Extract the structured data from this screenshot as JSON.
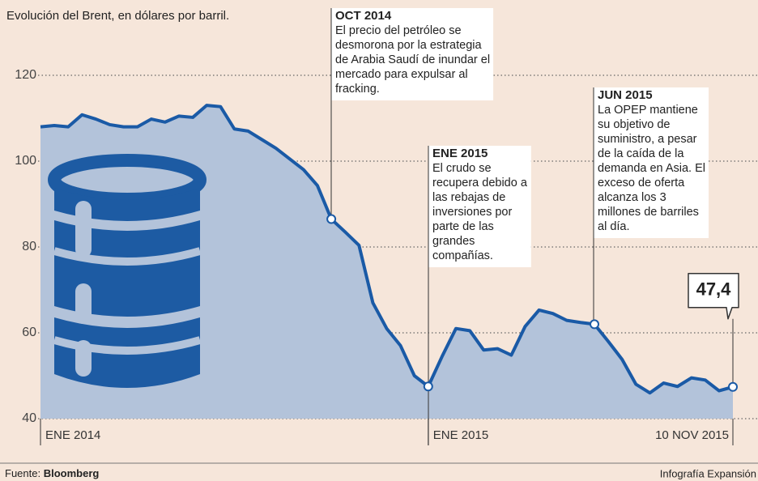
{
  "chart_data": {
    "type": "area",
    "title": "Evolución del Brent, en dólares por barril.",
    "categories": [
      "ENE 2014",
      null,
      null,
      null,
      null,
      null,
      null,
      null,
      null,
      null,
      null,
      null,
      null,
      null,
      null,
      null,
      null,
      null,
      null,
      null,
      null,
      null,
      null,
      null,
      null,
      null,
      null,
      null,
      "ENE 2015",
      null,
      null,
      null,
      null,
      null,
      null,
      null,
      null,
      null,
      null,
      null,
      null,
      null,
      null,
      null,
      null,
      null,
      null,
      null,
      null,
      null,
      "10 NOV 2015"
    ],
    "values": [
      108,
      108.3,
      108,
      110.8,
      109.8,
      108.5,
      108,
      108,
      109.8,
      109.1,
      110.5,
      110.2,
      113,
      112.7,
      107.5,
      107,
      105,
      103,
      100.5,
      98,
      94.3,
      86.5,
      83.5,
      80.4,
      67,
      61,
      57,
      50,
      47.5,
      54.5,
      61,
      60.5,
      56,
      56.3,
      54.8,
      61.5,
      65.3,
      64.5,
      62.9,
      62.4,
      62,
      58,
      53.8,
      48,
      46,
      48.3,
      47.5,
      49.5,
      49,
      46.5,
      47.4
    ],
    "value_labels": [
      null,
      null,
      null,
      null,
      null,
      null,
      null,
      null,
      null,
      null,
      null,
      null,
      null,
      null,
      null,
      null,
      null,
      null,
      null,
      null,
      null,
      null,
      null,
      null,
      null,
      null,
      null,
      null,
      null,
      null,
      null,
      null,
      null,
      null,
      null,
      null,
      null,
      null,
      null,
      null,
      null,
      null,
      null,
      null,
      null,
      null,
      null,
      null,
      null,
      null,
      "47,4"
    ],
    "color": "#1a5aa6",
    "fill": "#b3c3da",
    "ylim": [
      40,
      120
    ],
    "yticks": [
      40,
      60,
      80,
      100,
      120
    ],
    "grid": true,
    "annotations": [
      {
        "title": "OCT 2014",
        "lines": [
          "El precio del petróleo se",
          "desmorona por la estrategia",
          "de Arabia Saudí de inundar el",
          "mercado para expulsar al",
          "fracking."
        ]
      },
      {
        "title": "ENE 2015",
        "lines": [
          "El crudo se",
          "recupera debido a",
          "las rebajas de",
          "inversiones por",
          "parte de las",
          "grandes",
          "compañías."
        ]
      },
      {
        "title": "JUN 2015",
        "lines": [
          "La OPEP mantiene",
          "su objetivo de",
          "suministro, a pesar",
          "de la caída de la",
          "demanda en Asia. El",
          "exceso de oferta",
          "alcanza los 3",
          "millones de barriles",
          "al día."
        ]
      }
    ]
  },
  "footer": {
    "source_label": "Fuente:",
    "source": "Bloomberg",
    "credit": "Infografía Expansión"
  }
}
